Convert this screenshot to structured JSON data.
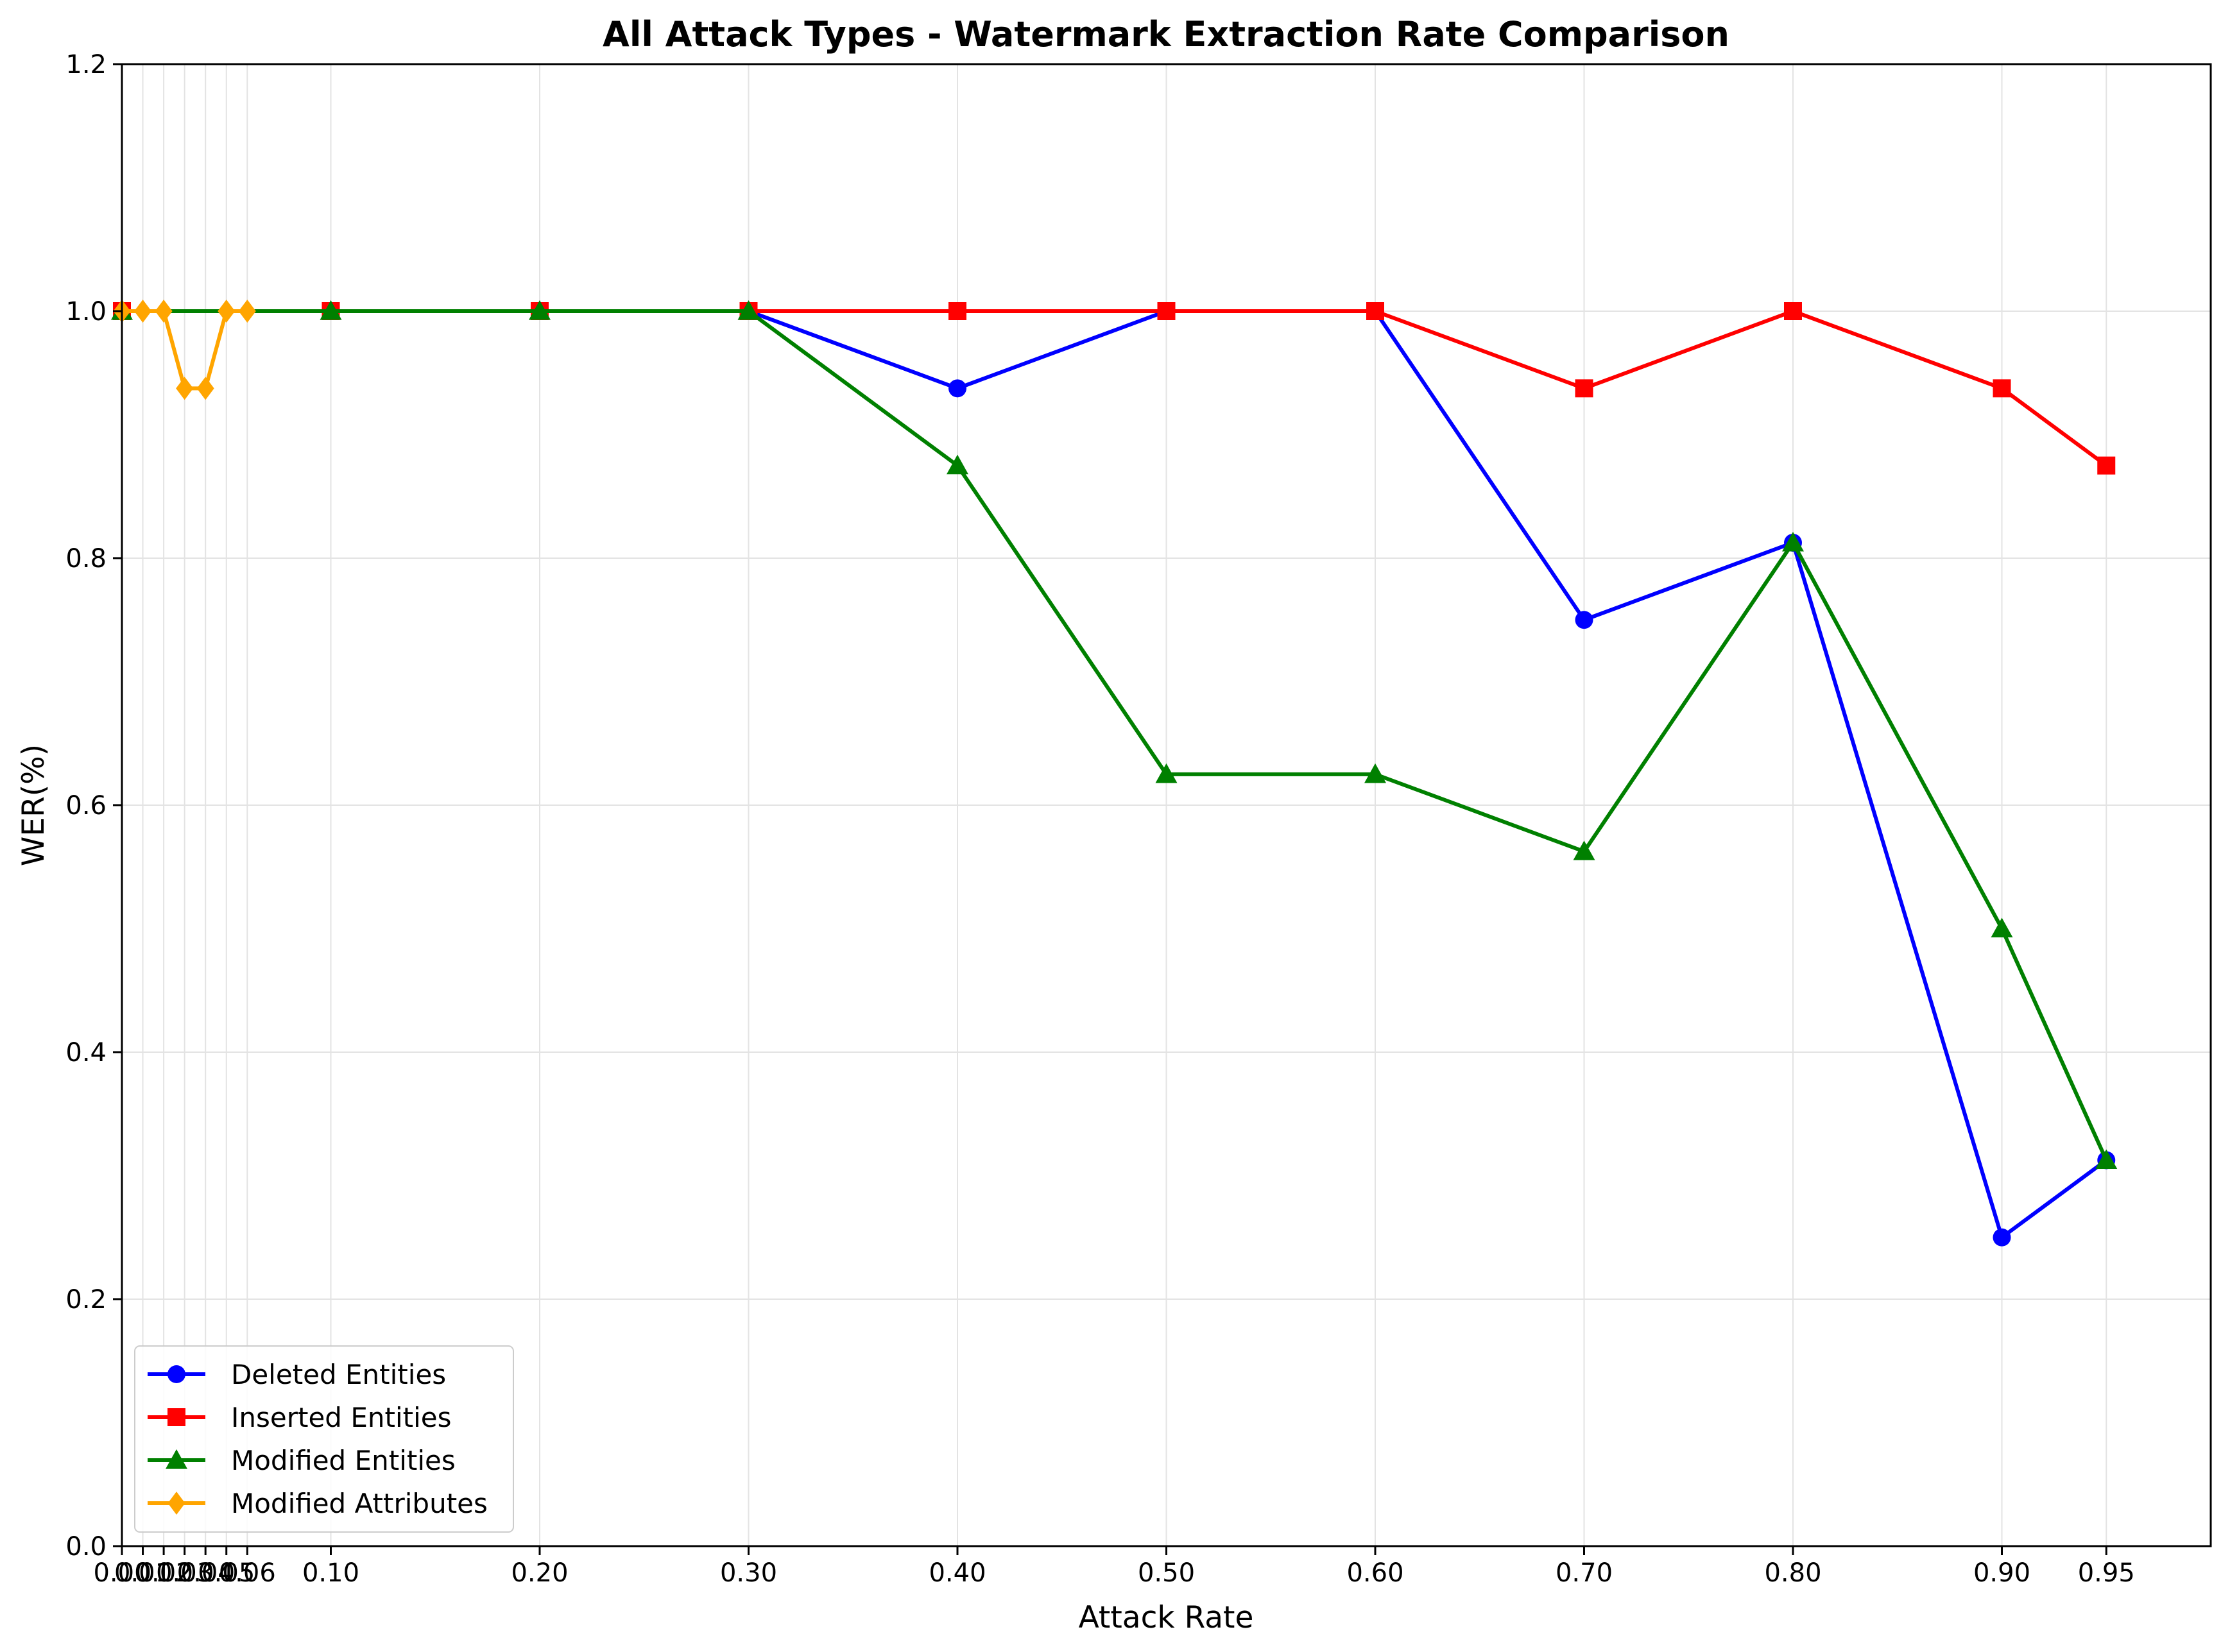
{
  "chart_data": {
    "type": "line",
    "title": "All Attack Types - Watermark Extraction Rate Comparison",
    "xlabel": "Attack Rate",
    "ylabel": "WER(%)",
    "xlim": [
      0.0,
      1.0
    ],
    "ylim": [
      0.0,
      1.2
    ],
    "grid": true,
    "legend_position": "lower-left",
    "x_ticks": [
      {
        "value": 0.0,
        "label": "0.00"
      },
      {
        "value": 0.01,
        "label": "0.01"
      },
      {
        "value": 0.02,
        "label": "0.02"
      },
      {
        "value": 0.03,
        "label": "0.03"
      },
      {
        "value": 0.04,
        "label": "0.04"
      },
      {
        "value": 0.05,
        "label": "0.05"
      },
      {
        "value": 0.06,
        "label": "0.06"
      },
      {
        "value": 0.1,
        "label": "0.10"
      },
      {
        "value": 0.2,
        "label": "0.20"
      },
      {
        "value": 0.3,
        "label": "0.30"
      },
      {
        "value": 0.4,
        "label": "0.40"
      },
      {
        "value": 0.5,
        "label": "0.50"
      },
      {
        "value": 0.6,
        "label": "0.60"
      },
      {
        "value": 0.7,
        "label": "0.70"
      },
      {
        "value": 0.8,
        "label": "0.80"
      },
      {
        "value": 0.9,
        "label": "0.90"
      },
      {
        "value": 0.95,
        "label": "0.95"
      }
    ],
    "y_ticks": [
      {
        "value": 0.0,
        "label": "0.0"
      },
      {
        "value": 0.2,
        "label": "0.2"
      },
      {
        "value": 0.4,
        "label": "0.4"
      },
      {
        "value": 0.6,
        "label": "0.6"
      },
      {
        "value": 0.8,
        "label": "0.8"
      },
      {
        "value": 1.0,
        "label": "1.0"
      },
      {
        "value": 1.2,
        "label": "1.2"
      }
    ],
    "series": [
      {
        "name": "Deleted Entities",
        "color": "#0000ff",
        "marker": "circle",
        "x": [
          0.0,
          0.1,
          0.2,
          0.3,
          0.4,
          0.5,
          0.6,
          0.7,
          0.8,
          0.9,
          0.95
        ],
        "values": [
          1.0,
          1.0,
          1.0,
          1.0,
          0.9375,
          1.0,
          1.0,
          0.75,
          0.8125,
          0.25,
          0.3125
        ]
      },
      {
        "name": "Inserted Entities",
        "color": "#ff0000",
        "marker": "square",
        "x": [
          0.0,
          0.1,
          0.2,
          0.3,
          0.4,
          0.5,
          0.6,
          0.7,
          0.8,
          0.9,
          0.95
        ],
        "values": [
          1.0,
          1.0,
          1.0,
          1.0,
          1.0,
          1.0,
          1.0,
          0.9375,
          1.0,
          0.9375,
          0.875
        ]
      },
      {
        "name": "Modified Entities",
        "color": "#008000",
        "marker": "triangle",
        "x": [
          0.0,
          0.1,
          0.2,
          0.3,
          0.4,
          0.5,
          0.6,
          0.7,
          0.8,
          0.9,
          0.95
        ],
        "values": [
          1.0,
          1.0,
          1.0,
          1.0,
          0.875,
          0.625,
          0.625,
          0.5625,
          0.8125,
          0.5,
          0.3125
        ]
      },
      {
        "name": "Modified Attributes",
        "color": "#ffa500",
        "marker": "diamond",
        "x": [
          0.0,
          0.01,
          0.02,
          0.03,
          0.04,
          0.05,
          0.06
        ],
        "values": [
          1.0,
          1.0,
          1.0,
          0.9375,
          0.9375,
          1.0,
          1.0
        ]
      }
    ]
  }
}
